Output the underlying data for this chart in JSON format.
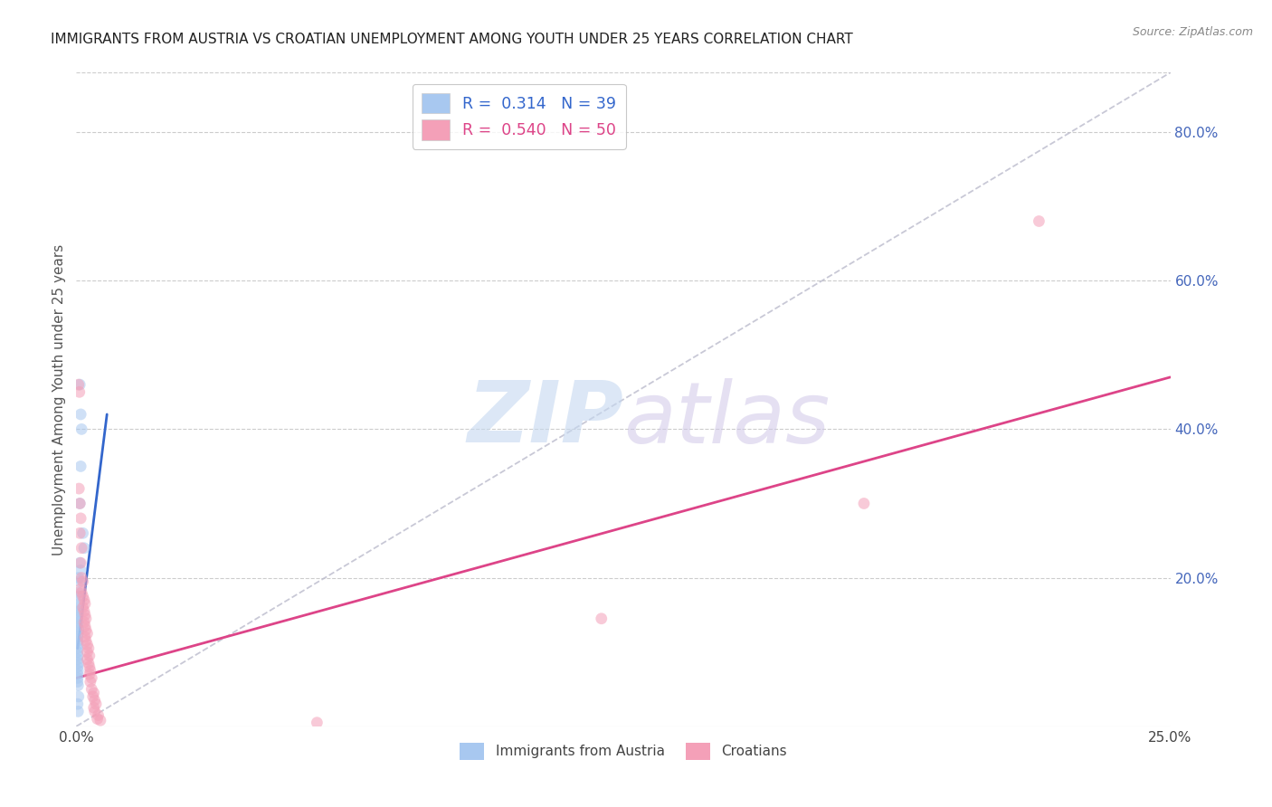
{
  "title": "IMMIGRANTS FROM AUSTRIA VS CROATIAN UNEMPLOYMENT AMONG YOUTH UNDER 25 YEARS CORRELATION CHART",
  "source": "Source: ZipAtlas.com",
  "ylabel": "Unemployment Among Youth under 25 years",
  "xlim": [
    0.0,
    0.25
  ],
  "ylim": [
    0.0,
    0.88
  ],
  "yticks_right": [
    0.2,
    0.4,
    0.6,
    0.8
  ],
  "ytick_labels_right": [
    "20.0%",
    "40.0%",
    "60.0%",
    "80.0%"
  ],
  "legend_entries": [
    {
      "label": "R =  0.314   N = 39",
      "color": "#a8c8f0"
    },
    {
      "label": "R =  0.540   N = 50",
      "color": "#f4a0b8"
    }
  ],
  "blue_scatter": [
    [
      0.0008,
      0.46
    ],
    [
      0.001,
      0.42
    ],
    [
      0.0012,
      0.4
    ],
    [
      0.001,
      0.35
    ],
    [
      0.0008,
      0.3
    ],
    [
      0.0015,
      0.26
    ],
    [
      0.0018,
      0.24
    ],
    [
      0.0008,
      0.22
    ],
    [
      0.001,
      0.21
    ],
    [
      0.0005,
      0.2
    ],
    [
      0.0008,
      0.195
    ],
    [
      0.0005,
      0.18
    ],
    [
      0.0006,
      0.175
    ],
    [
      0.0005,
      0.165
    ],
    [
      0.0003,
      0.16
    ],
    [
      0.0005,
      0.155
    ],
    [
      0.0004,
      0.15
    ],
    [
      0.0003,
      0.145
    ],
    [
      0.0004,
      0.14
    ],
    [
      0.0003,
      0.135
    ],
    [
      0.0005,
      0.13
    ],
    [
      0.0004,
      0.125
    ],
    [
      0.0003,
      0.12
    ],
    [
      0.0003,
      0.115
    ],
    [
      0.0004,
      0.11
    ],
    [
      0.0003,
      0.105
    ],
    [
      0.0003,
      0.1
    ],
    [
      0.0004,
      0.095
    ],
    [
      0.0003,
      0.09
    ],
    [
      0.0005,
      0.085
    ],
    [
      0.0003,
      0.08
    ],
    [
      0.0004,
      0.075
    ],
    [
      0.0003,
      0.07
    ],
    [
      0.0003,
      0.065
    ],
    [
      0.0003,
      0.06
    ],
    [
      0.0004,
      0.055
    ],
    [
      0.0005,
      0.04
    ],
    [
      0.0003,
      0.03
    ],
    [
      0.0004,
      0.02
    ]
  ],
  "pink_scatter": [
    [
      0.0005,
      0.46
    ],
    [
      0.0007,
      0.45
    ],
    [
      0.0006,
      0.32
    ],
    [
      0.0008,
      0.3
    ],
    [
      0.001,
      0.28
    ],
    [
      0.0008,
      0.26
    ],
    [
      0.0012,
      0.24
    ],
    [
      0.001,
      0.22
    ],
    [
      0.0012,
      0.2
    ],
    [
      0.0015,
      0.195
    ],
    [
      0.001,
      0.185
    ],
    [
      0.0012,
      0.18
    ],
    [
      0.0015,
      0.175
    ],
    [
      0.0018,
      0.17
    ],
    [
      0.002,
      0.165
    ],
    [
      0.0015,
      0.16
    ],
    [
      0.0018,
      0.155
    ],
    [
      0.002,
      0.15
    ],
    [
      0.0022,
      0.145
    ],
    [
      0.0018,
      0.14
    ],
    [
      0.002,
      0.135
    ],
    [
      0.0022,
      0.13
    ],
    [
      0.0025,
      0.125
    ],
    [
      0.002,
      0.12
    ],
    [
      0.0022,
      0.115
    ],
    [
      0.0025,
      0.11
    ],
    [
      0.0028,
      0.105
    ],
    [
      0.0025,
      0.1
    ],
    [
      0.003,
      0.095
    ],
    [
      0.0025,
      0.09
    ],
    [
      0.0028,
      0.085
    ],
    [
      0.003,
      0.08
    ],
    [
      0.0032,
      0.075
    ],
    [
      0.003,
      0.07
    ],
    [
      0.0035,
      0.065
    ],
    [
      0.0032,
      0.06
    ],
    [
      0.0035,
      0.05
    ],
    [
      0.004,
      0.045
    ],
    [
      0.0038,
      0.04
    ],
    [
      0.0042,
      0.035
    ],
    [
      0.0045,
      0.03
    ],
    [
      0.004,
      0.025
    ],
    [
      0.0042,
      0.02
    ],
    [
      0.005,
      0.015
    ],
    [
      0.0048,
      0.01
    ],
    [
      0.0055,
      0.008
    ],
    [
      0.055,
      0.005
    ],
    [
      0.12,
      0.145
    ],
    [
      0.18,
      0.3
    ],
    [
      0.22,
      0.68
    ]
  ],
  "blue_line_x": [
    0.0003,
    0.007
  ],
  "blue_line_y": [
    0.105,
    0.42
  ],
  "pink_line_x": [
    0.0,
    0.25
  ],
  "pink_line_y": [
    0.065,
    0.47
  ],
  "dashed_line_x": [
    0.0,
    0.25
  ],
  "dashed_line_y": [
    0.0,
    0.88
  ],
  "watermark_zip": "ZIP",
  "watermark_atlas": "atlas",
  "blue_color": "#a8c8f0",
  "pink_color": "#f4a0b8",
  "blue_line_color": "#3366cc",
  "pink_line_color": "#dd4488",
  "scatter_size": 85,
  "scatter_alpha": 0.55,
  "background_color": "#ffffff",
  "grid_color": "#cccccc",
  "title_color": "#222222",
  "axis_label_color": "#555555",
  "right_axis_color": "#4466bb",
  "legend_border_color": "#bbbbbb",
  "bottom_legend_blue": "Immigrants from Austria",
  "bottom_legend_pink": "Croatians"
}
